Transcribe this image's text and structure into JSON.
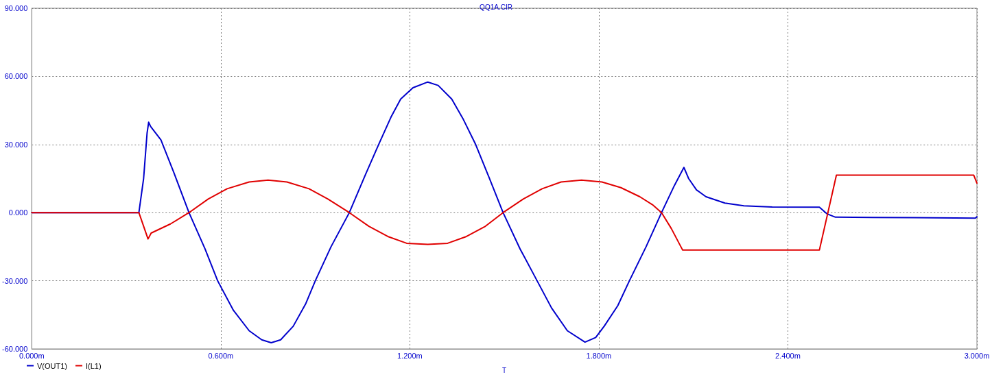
{
  "chart_data": {
    "type": "line",
    "title": "QQ1A.CIR",
    "xlabel": "T",
    "x": [
      0,
      0.34,
      0.355,
      0.366,
      0.371,
      0.377,
      0.41,
      0.45,
      0.499,
      0.55,
      0.59,
      0.64,
      0.69,
      0.73,
      0.76,
      0.79,
      0.83,
      0.87,
      0.9,
      0.95,
      1.008,
      1.06,
      1.101,
      1.14,
      1.171,
      1.21,
      1.257,
      1.29,
      1.333,
      1.37,
      1.409,
      1.45,
      1.496,
      1.55,
      1.604,
      1.65,
      1.7,
      1.756,
      1.79,
      1.817,
      1.86,
      1.897,
      1.95,
      1.999,
      2.04,
      2.07,
      2.085,
      2.11,
      2.14,
      2.2,
      2.26,
      2.35,
      2.5,
      2.525,
      2.551,
      2.8,
      2.995,
      3.0
    ],
    "series": [
      {
        "name": "V(OUT1)",
        "color": "#0000cc",
        "values": [
          0,
          0,
          15,
          35,
          39.8,
          38,
          32,
          18,
          0,
          -16,
          -30,
          -43,
          -52,
          -56,
          -57.3,
          -56,
          -50,
          -40,
          -30,
          -15,
          0,
          17,
          30,
          42,
          50,
          55,
          57.5,
          56,
          50,
          41,
          30,
          16,
          0,
          -16,
          -30,
          -42,
          -52,
          -57,
          -55,
          -50,
          -41,
          -30,
          -15,
          0,
          12,
          19.9,
          15,
          10,
          7,
          4.2,
          3,
          2.5,
          2.4,
          -0.6,
          -2,
          -2.2,
          -2.4,
          -1.8
        ]
      },
      {
        "name": "I(L1)",
        "color": "#e00000",
        "x": [
          0,
          0.34,
          0.369,
          0.379,
          0.44,
          0.499,
          0.56,
          0.62,
          0.69,
          0.75,
          0.81,
          0.88,
          0.94,
          1.008,
          1.07,
          1.13,
          1.19,
          1.257,
          1.32,
          1.38,
          1.44,
          1.496,
          1.56,
          1.62,
          1.68,
          1.745,
          1.81,
          1.87,
          1.93,
          1.97,
          1.999,
          2.03,
          2.066,
          2.5,
          2.554,
          2.99,
          3.0
        ],
        "values": [
          0,
          0,
          -11.6,
          -9,
          -5,
          0,
          6,
          10.5,
          13.5,
          14.3,
          13.5,
          10.5,
          6,
          0,
          -6,
          -10.5,
          -13.5,
          -14,
          -13.5,
          -10.5,
          -6,
          0,
          6,
          10.5,
          13.5,
          14.3,
          13.5,
          11,
          7,
          3.5,
          0,
          -7,
          -16.5,
          -16.5,
          16.5,
          16.5,
          13
        ]
      }
    ],
    "xlim": [
      0,
      3
    ],
    "xticks": [
      {
        "value": 0,
        "label": "0.000m"
      },
      {
        "value": 0.6,
        "label": "0.600m"
      },
      {
        "value": 1.2,
        "label": "1.200m"
      },
      {
        "value": 1.8,
        "label": "1.800m"
      },
      {
        "value": 2.4,
        "label": "2.400m"
      },
      {
        "value": 3.0,
        "label": "3.000m"
      }
    ],
    "ylim": [
      -60,
      90
    ],
    "yticks": [
      {
        "value": -60,
        "label": "-60.000"
      },
      {
        "value": -30,
        "label": "-30.000"
      },
      {
        "value": 0,
        "label": "0.000"
      },
      {
        "value": 30,
        "label": "30.000"
      },
      {
        "value": 60,
        "label": "60.000"
      },
      {
        "value": 90,
        "label": "90.000"
      }
    ],
    "grid": true,
    "legend": "bottom left",
    "marker": "none",
    "line_style": "solid"
  }
}
